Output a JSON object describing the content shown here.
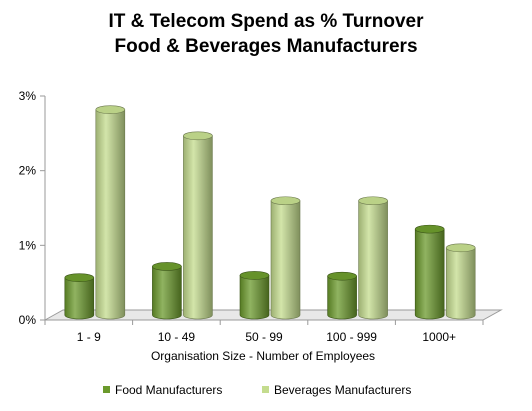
{
  "chart_data": {
    "type": "bar",
    "title_lines": [
      "IT & Telecom Spend as % Turnover",
      "Food & Beverages Manufacturers"
    ],
    "xlabel": "Organisation Size - Number of Employees",
    "ylabel": "",
    "categories": [
      "1 - 9",
      "10 - 49",
      "50 - 99",
      "100 - 999",
      "1000+"
    ],
    "y_ticks": [
      "0%",
      "1%",
      "2%",
      "3%"
    ],
    "ylim": [
      0,
      3
    ],
    "grid": false,
    "legend_position": "bottom",
    "series": [
      {
        "name": "Food Manufacturers",
        "values": [
          0.5,
          0.65,
          0.53,
          0.52,
          1.15
        ],
        "color": "#6b9a2c"
      },
      {
        "name": "Beverages Manufacturers",
        "values": [
          2.75,
          2.4,
          1.53,
          1.53,
          0.9
        ],
        "color": "#c4dc8e"
      }
    ]
  }
}
